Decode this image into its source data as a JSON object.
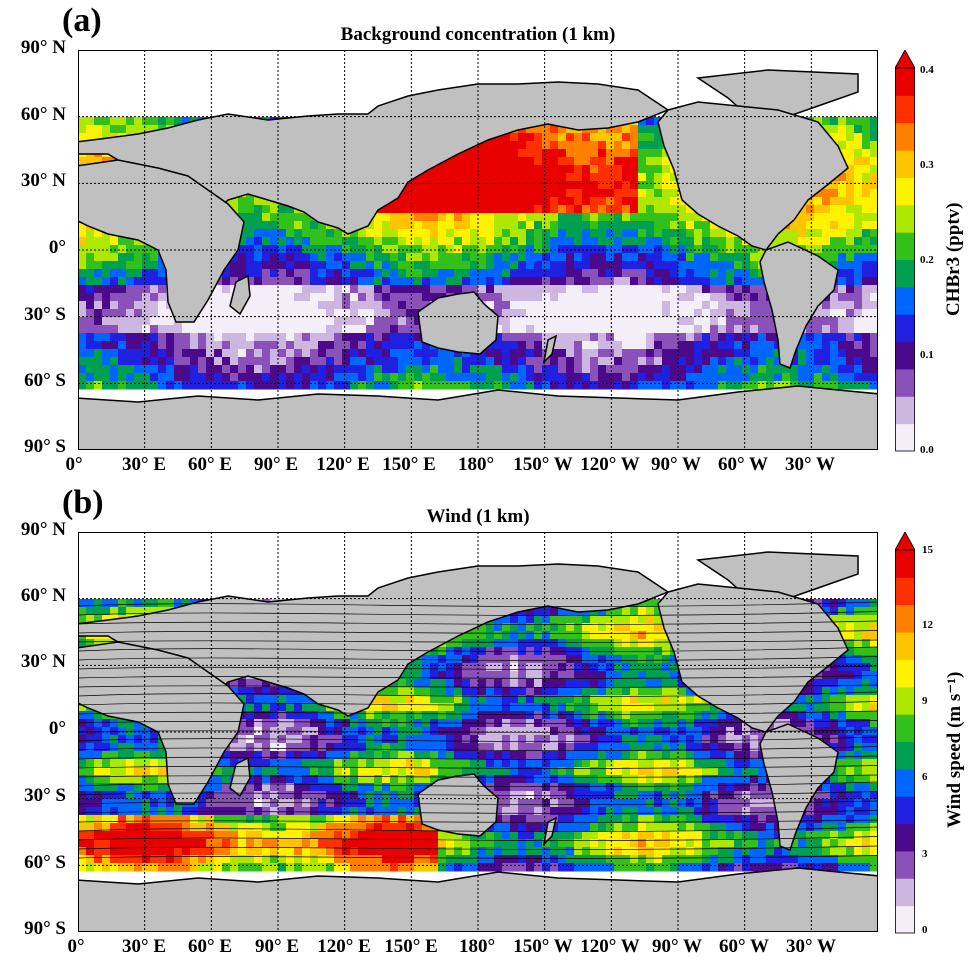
{
  "panels": [
    {
      "letter": "(a)",
      "title": "Background concentration (1 km)",
      "lat_labels": [
        "90° N",
        "60° N",
        "30° N",
        "0°",
        "30° S",
        "60° S",
        "90° S"
      ],
      "lon_labels": [
        "0°",
        "30° E",
        "60° E",
        "90° E",
        "120° E",
        "150° E",
        "180°",
        "150° W",
        "120° W",
        "90° W",
        "60° W",
        "30° W"
      ],
      "colorbar": {
        "title": "CHBr3 (pptv)",
        "ticks": [
          "0.4",
          "0.3",
          "0.2",
          "0.1",
          "0.0"
        ],
        "range": [
          0.0,
          0.4
        ],
        "extend": "max"
      }
    },
    {
      "letter": "(b)",
      "title": "Wind (1 km)",
      "lat_labels": [
        "90° N",
        "60° N",
        "30° N",
        "0°",
        "30° S",
        "60° S",
        "90° S"
      ],
      "lon_labels": [
        "0°",
        "30° E",
        "60° E",
        "90° E",
        "120° E",
        "150° E",
        "180°",
        "150° W",
        "120° W",
        "90° W",
        "60° W",
        "30° W"
      ],
      "colorbar": {
        "title": "Wind speed (m s⁻¹)",
        "ticks": [
          "15",
          "12",
          "9",
          "6",
          "3",
          "0"
        ],
        "range": [
          0,
          15
        ],
        "extend": "max"
      }
    }
  ],
  "colors": {
    "land": "#c0c0c0",
    "ocean_missing": "#ffffff",
    "coast": "#000000",
    "colormap": [
      "#f4eef8",
      "#cdb7e0",
      "#8a52b8",
      "#4b0a8c",
      "#2020e0",
      "#0066ff",
      "#00a050",
      "#33c01a",
      "#aee800",
      "#fff200",
      "#ffc400",
      "#ff8000",
      "#ff3000",
      "#e80000"
    ]
  }
}
